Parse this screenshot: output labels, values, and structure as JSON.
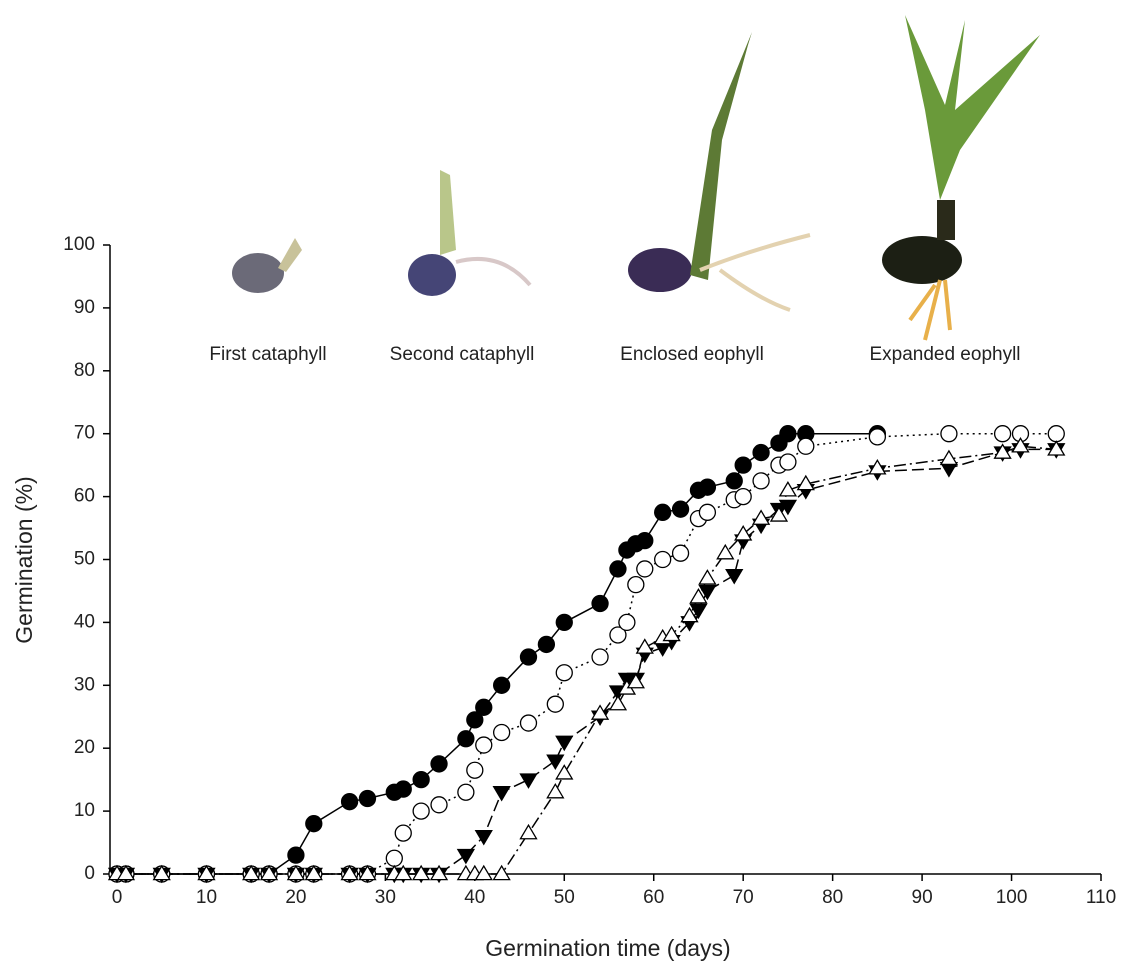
{
  "chart_data": {
    "type": "line",
    "xlabel": "Germination time (days)",
    "ylabel": "Germination (%)",
    "annotations": [
      "First cataphyll",
      "Second cataphyll",
      "Enclosed eophyll",
      "Expanded eophyll"
    ],
    "xlim": [
      0,
      110
    ],
    "ylim": [
      0,
      100
    ],
    "xticks": [
      0,
      10,
      20,
      30,
      40,
      50,
      60,
      70,
      80,
      90,
      100,
      110
    ],
    "yticks": [
      0,
      10,
      20,
      30,
      40,
      50,
      60,
      70,
      80,
      90,
      100
    ],
    "grid": false,
    "series": [
      {
        "color": "#000000",
        "marker": "circle",
        "filled": true,
        "dash": "solid",
        "x": [
          0,
          1,
          5,
          10,
          15,
          17,
          20,
          22,
          26,
          28,
          31,
          32,
          34,
          36,
          39,
          40,
          41,
          43,
          46,
          48,
          50,
          54,
          56,
          57,
          58,
          59,
          61,
          63,
          65,
          66,
          69,
          70,
          72,
          74,
          75,
          77,
          85
        ],
        "values": [
          0,
          0,
          0,
          0,
          0,
          0,
          3,
          8,
          11.5,
          12,
          13,
          13.5,
          15,
          17.5,
          21.5,
          24.5,
          26.5,
          30,
          34.5,
          36.5,
          40,
          43,
          48.5,
          51.5,
          52.5,
          53,
          57.5,
          58,
          61,
          61.5,
          62.5,
          65,
          67,
          68.5,
          70,
          70,
          70
        ]
      },
      {
        "color": "#000000",
        "marker": "circle",
        "filled": false,
        "dash": "dotted",
        "x": [
          0,
          1,
          5,
          10,
          15,
          17,
          20,
          22,
          26,
          28,
          31,
          32,
          34,
          36,
          39,
          40,
          41,
          43,
          46,
          49,
          50,
          54,
          56,
          57,
          58,
          59,
          61,
          63,
          65,
          66,
          69,
          70,
          72,
          74,
          75,
          77,
          85,
          93,
          99,
          101,
          105
        ],
        "values": [
          0,
          0,
          0,
          0,
          0,
          0,
          0,
          0,
          0,
          0,
          2.5,
          6.5,
          10,
          11,
          13,
          16.5,
          20.5,
          22.5,
          24,
          27,
          32,
          34.5,
          38,
          40,
          46,
          48.5,
          50,
          51,
          56.5,
          57.5,
          59.5,
          60,
          62.5,
          65,
          65.5,
          68,
          69.5,
          70,
          70,
          70,
          70
        ]
      },
      {
        "color": "#000000",
        "marker": "triangle-down",
        "filled": true,
        "dash": "dashed",
        "x": [
          0,
          1,
          5,
          10,
          15,
          17,
          20,
          22,
          26,
          28,
          31,
          32,
          34,
          36,
          39,
          41,
          43,
          46,
          49,
          50,
          54,
          56,
          57,
          58,
          59,
          61,
          62,
          64,
          65,
          66,
          69,
          70,
          72,
          74,
          75,
          77,
          85,
          93,
          99,
          101,
          105
        ],
        "values": [
          0,
          0,
          0,
          0,
          0,
          0,
          0,
          0,
          0,
          0,
          0,
          0,
          0,
          0,
          3,
          6,
          13,
          15,
          18,
          21,
          25,
          29,
          31,
          31,
          35,
          36,
          37,
          40,
          42,
          45,
          47.5,
          53,
          55.5,
          58,
          58.5,
          61,
          64,
          64.5,
          67,
          67.5,
          67.5
        ]
      },
      {
        "color": "#000000",
        "marker": "triangle-up",
        "filled": false,
        "dash": "dashdot",
        "x": [
          0,
          1,
          5,
          10,
          15,
          17,
          20,
          22,
          26,
          28,
          31,
          32,
          34,
          36,
          39,
          40,
          41,
          43,
          46,
          49,
          50,
          54,
          56,
          57,
          58,
          59,
          61,
          62,
          64,
          65,
          66,
          68,
          70,
          72,
          74,
          75,
          77,
          85,
          93,
          99,
          101,
          105
        ],
        "values": [
          0,
          0,
          0,
          0,
          0,
          0,
          0,
          0,
          0,
          0,
          0,
          0,
          0,
          0,
          0,
          0,
          0,
          0,
          6.5,
          13,
          16,
          25.5,
          27,
          29.5,
          30.5,
          36,
          37.5,
          38,
          41,
          44,
          47,
          51,
          54,
          56.5,
          57,
          61,
          62,
          64.5,
          66,
          67,
          68,
          67.5
        ]
      }
    ]
  }
}
